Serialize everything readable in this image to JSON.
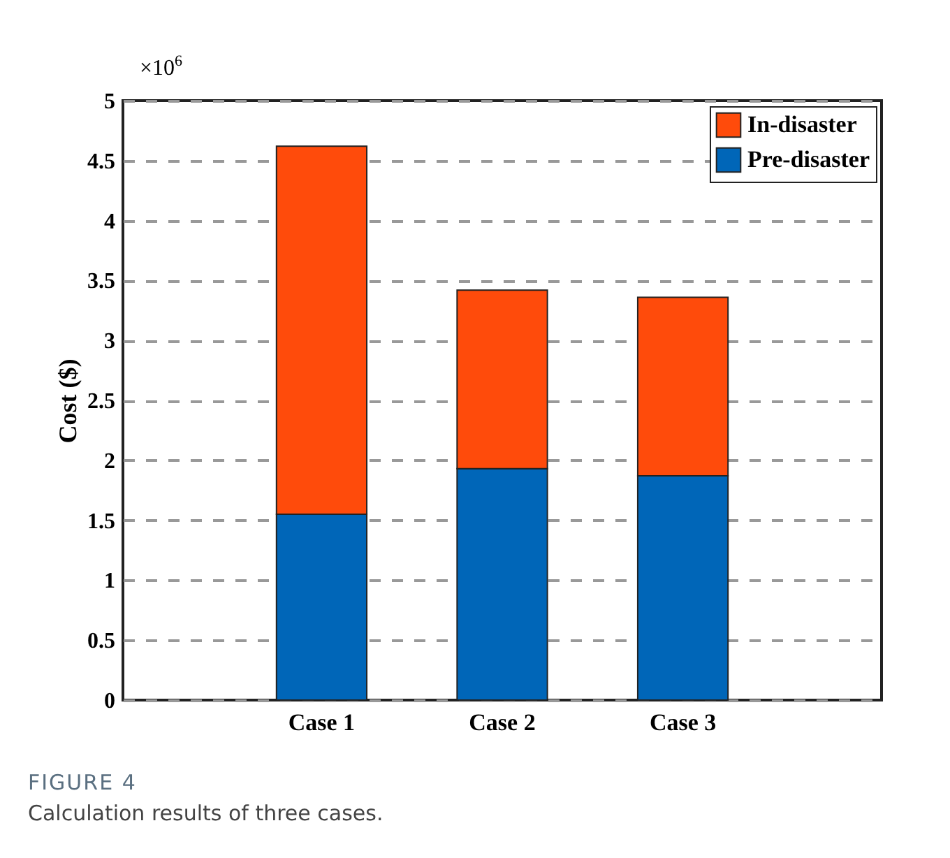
{
  "chart_data": {
    "type": "bar",
    "ylabel": "Cost ($)",
    "categories": [
      "Case 1",
      "Case 2",
      "Case 3"
    ],
    "stacked": true,
    "series": [
      {
        "name": "Pre-disaster",
        "color": "#0066b8",
        "values": [
          1.55,
          1.93,
          1.87
        ]
      },
      {
        "name": "In-disaster",
        "color": "#ff4b0b",
        "values": [
          3.07,
          1.49,
          1.49
        ]
      }
    ],
    "ylim": [
      0,
      5
    ],
    "yticks": [
      0,
      0.5,
      1,
      1.5,
      2,
      2.5,
      3,
      3.5,
      4,
      4.5,
      5
    ],
    "grid": "y",
    "legend": "top right",
    "annotations": [
      "×10$^{6}$",
      "FIGURE 4",
      "Calculation results of three cases."
    ]
  }
}
